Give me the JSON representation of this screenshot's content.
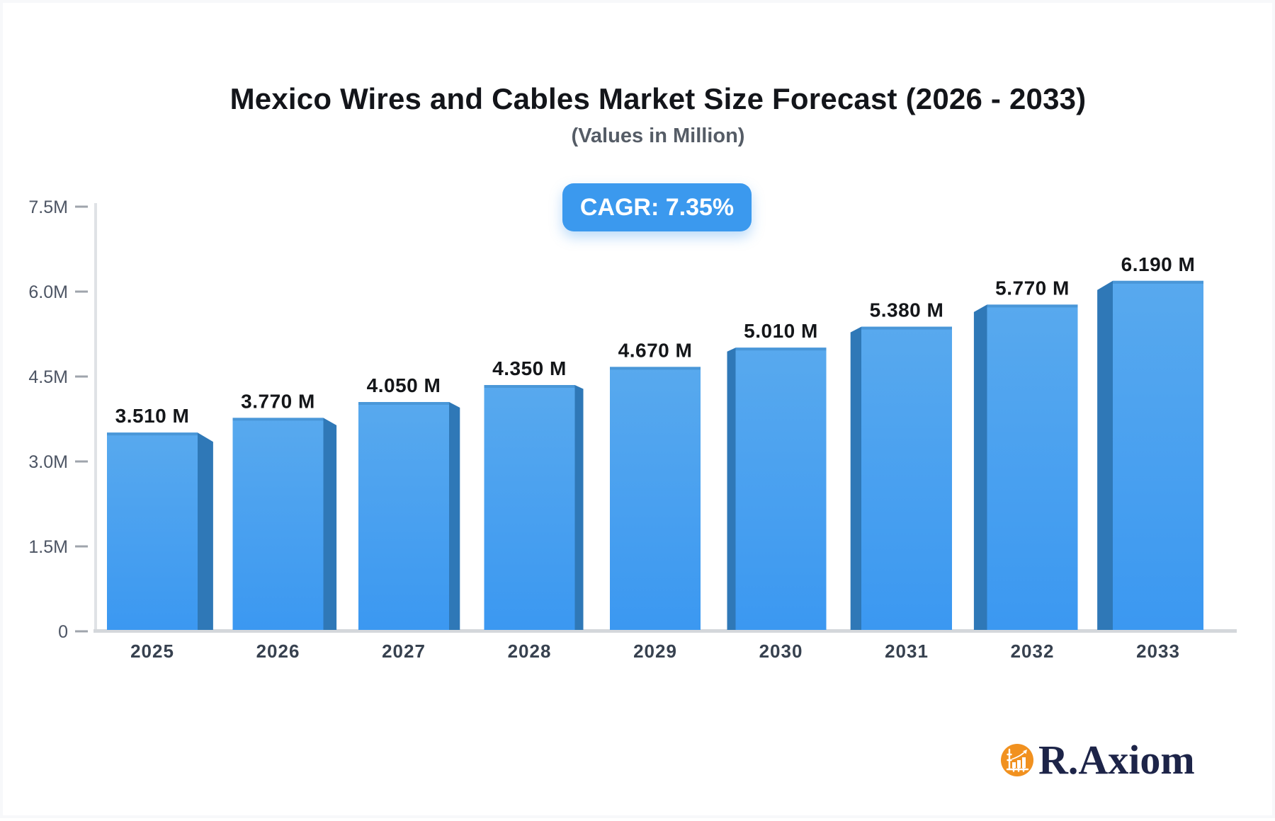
{
  "title": "Mexico Wires and Cables Market Size Forecast (2026 - 2033)",
  "subtitle": "(Values in Million)",
  "badge": {
    "label": "CAGR: 7.35%",
    "bg_color": "#3b99ee"
  },
  "logo": {
    "text": "R.Axiom",
    "icon": "bar-chart-growth-icon",
    "circle_color": "#f1911f",
    "text_color": "#1d2448"
  },
  "chart_data": {
    "type": "bar",
    "title": "Mexico Wires and Cables Market Size Forecast (2026 - 2033)",
    "subtitle": "(Values in Million)",
    "unit": "Million",
    "cagr": "7.35%",
    "categories": [
      "2025",
      "2026",
      "2027",
      "2028",
      "2029",
      "2030",
      "2031",
      "2032",
      "2033"
    ],
    "values": [
      3.51,
      3.77,
      4.05,
      4.35,
      4.67,
      5.01,
      5.38,
      5.77,
      6.19
    ],
    "value_labels": [
      "3.510 M",
      "3.770 M",
      "4.050 M",
      "4.350 M",
      "4.670 M",
      "5.010 M",
      "5.380 M",
      "5.770 M",
      "6.190 M"
    ],
    "ylim": [
      0,
      7.5
    ],
    "yticks": [
      {
        "value": 7.5,
        "label": "7.5M"
      },
      {
        "value": 6.0,
        "label": "6.0M"
      },
      {
        "value": 4.5,
        "label": "4.5M"
      },
      {
        "value": 3.0,
        "label": "3.0M"
      },
      {
        "value": 1.5,
        "label": "1.5M"
      },
      {
        "value": 0,
        "label": "0"
      }
    ],
    "grid": false,
    "legend": false,
    "colors": {
      "bar_face_top": "#58a9ee",
      "bar_face_bottom": "#3b98f1",
      "bar_side": "#2f78b7",
      "bar_cap": "#4a97d8",
      "axis_line": "#dfe2e6",
      "baseline": "#d4d7db",
      "tick_mark": "#9fa4ac",
      "y_label": "#4d5564",
      "x_label": "#37414f",
      "value_label": "#141619"
    }
  }
}
